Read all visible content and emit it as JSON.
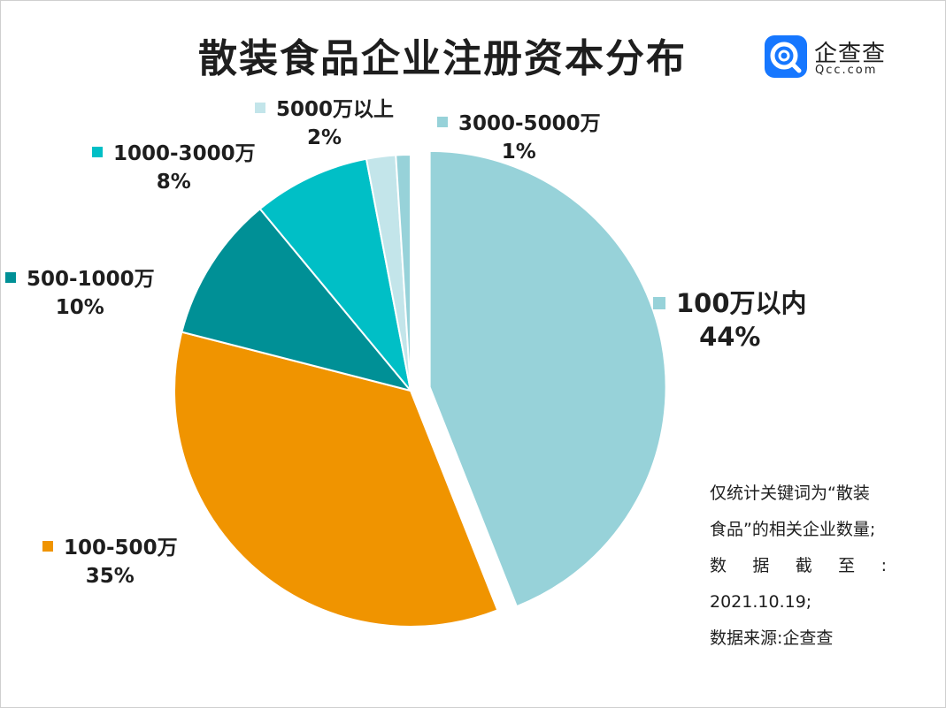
{
  "header": {
    "title": "散装食品企业注册资本分布"
  },
  "brand": {
    "name": "企查查",
    "domain": "Qcc.com",
    "color": "#1677ff"
  },
  "chart_data": {
    "type": "pie",
    "title": "散装食品企业注册资本分布",
    "unit": "%",
    "slices": [
      {
        "label": "100万以内",
        "value": 44,
        "value_text": "44%",
        "color": "#97d2d9",
        "exploded": true
      },
      {
        "label": "100-500万",
        "value": 35,
        "value_text": "35%",
        "color": "#f09400"
      },
      {
        "label": "500-1000万",
        "value": 10,
        "value_text": "10%",
        "color": "#009096"
      },
      {
        "label": "1000-3000万",
        "value": 8,
        "value_text": "8%",
        "color": "#00bfc6"
      },
      {
        "label": "5000万以上",
        "value": 2,
        "value_text": "2%",
        "color": "#c3e5ea"
      },
      {
        "label": "3000-5000万",
        "value": 1,
        "value_text": "1%",
        "color": "#97d2d9"
      }
    ],
    "legend": "labels beside slices"
  },
  "notes": {
    "line1": "仅统计关键词为“散装",
    "line2": "食品”的相关企业数量;",
    "line3_chars": [
      "数",
      "据",
      "截",
      "至",
      ":"
    ],
    "line4": "2021.10.19;",
    "line5": "数据来源:企查查"
  }
}
